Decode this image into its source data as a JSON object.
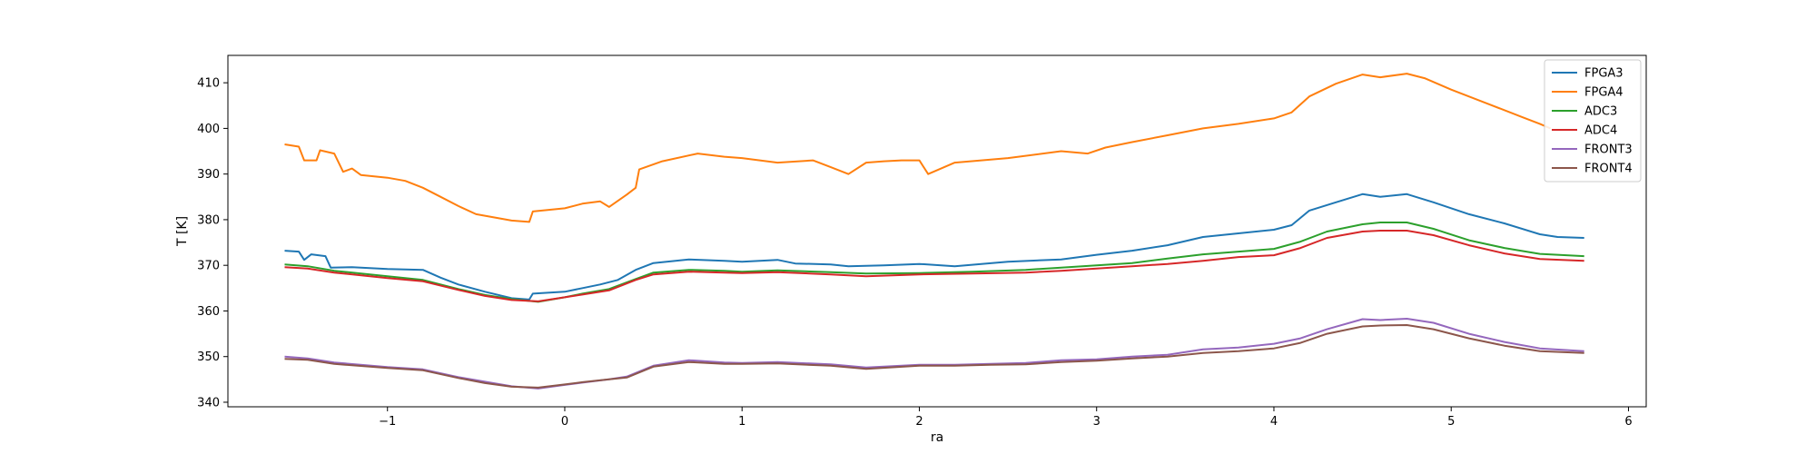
{
  "chart_data": {
    "type": "line",
    "title": "",
    "xlabel": "ra",
    "ylabel": "T [K]",
    "xlim": [
      -1.9,
      6.1
    ],
    "ylim": [
      339,
      416
    ],
    "xticks": [
      -1,
      0,
      1,
      2,
      3,
      4,
      5,
      6
    ],
    "xtick_labels": [
      "−1",
      "0",
      "1",
      "2",
      "3",
      "4",
      "5",
      "6"
    ],
    "yticks": [
      340,
      350,
      360,
      370,
      380,
      390,
      400,
      410
    ],
    "ytick_labels": [
      "340",
      "350",
      "360",
      "370",
      "380",
      "390",
      "400",
      "410"
    ],
    "grid": false,
    "legend_position": "top-right",
    "series": [
      {
        "name": "FPGA3",
        "color": "#1f77b4",
        "points": [
          [
            -1.58,
            373.2
          ],
          [
            -1.5,
            373.0
          ],
          [
            -1.47,
            371.2
          ],
          [
            -1.43,
            372.4
          ],
          [
            -1.35,
            372.0
          ],
          [
            -1.32,
            369.5
          ],
          [
            -1.2,
            369.6
          ],
          [
            -1.0,
            369.2
          ],
          [
            -0.8,
            369.0
          ],
          [
            -0.7,
            367.3
          ],
          [
            -0.6,
            365.8
          ],
          [
            -0.45,
            364.2
          ],
          [
            -0.3,
            362.8
          ],
          [
            -0.2,
            362.5
          ],
          [
            -0.18,
            363.8
          ],
          [
            0.0,
            364.2
          ],
          [
            0.1,
            365.0
          ],
          [
            0.2,
            365.8
          ],
          [
            0.3,
            366.8
          ],
          [
            0.4,
            369.0
          ],
          [
            0.5,
            370.5
          ],
          [
            0.7,
            371.3
          ],
          [
            0.9,
            371.0
          ],
          [
            1.0,
            370.8
          ],
          [
            1.2,
            371.2
          ],
          [
            1.3,
            370.4
          ],
          [
            1.5,
            370.2
          ],
          [
            1.6,
            369.8
          ],
          [
            1.8,
            370.0
          ],
          [
            2.0,
            370.3
          ],
          [
            2.2,
            369.8
          ],
          [
            2.5,
            370.8
          ],
          [
            2.8,
            371.3
          ],
          [
            3.0,
            372.3
          ],
          [
            3.2,
            373.2
          ],
          [
            3.4,
            374.4
          ],
          [
            3.6,
            376.2
          ],
          [
            3.8,
            377.0
          ],
          [
            4.0,
            377.8
          ],
          [
            4.1,
            378.8
          ],
          [
            4.2,
            382.0
          ],
          [
            4.35,
            383.8
          ],
          [
            4.5,
            385.6
          ],
          [
            4.6,
            385.0
          ],
          [
            4.75,
            385.6
          ],
          [
            4.9,
            383.8
          ],
          [
            5.1,
            381.2
          ],
          [
            5.3,
            379.2
          ],
          [
            5.5,
            376.8
          ],
          [
            5.6,
            376.2
          ],
          [
            5.75,
            376.0
          ]
        ]
      },
      {
        "name": "FPGA4",
        "color": "#ff7f0e",
        "points": [
          [
            -1.58,
            396.5
          ],
          [
            -1.5,
            396.0
          ],
          [
            -1.47,
            393.0
          ],
          [
            -1.4,
            393.0
          ],
          [
            -1.38,
            395.2
          ],
          [
            -1.3,
            394.5
          ],
          [
            -1.25,
            390.5
          ],
          [
            -1.2,
            391.2
          ],
          [
            -1.15,
            389.8
          ],
          [
            -1.0,
            389.2
          ],
          [
            -0.9,
            388.5
          ],
          [
            -0.8,
            387.0
          ],
          [
            -0.7,
            385.0
          ],
          [
            -0.6,
            383.0
          ],
          [
            -0.5,
            381.2
          ],
          [
            -0.4,
            380.5
          ],
          [
            -0.3,
            379.8
          ],
          [
            -0.2,
            379.5
          ],
          [
            -0.18,
            381.8
          ],
          [
            0.0,
            382.5
          ],
          [
            0.1,
            383.5
          ],
          [
            0.2,
            384.0
          ],
          [
            0.25,
            382.8
          ],
          [
            0.35,
            385.5
          ],
          [
            0.4,
            387.0
          ],
          [
            0.42,
            391.0
          ],
          [
            0.55,
            392.8
          ],
          [
            0.75,
            394.5
          ],
          [
            0.9,
            393.8
          ],
          [
            1.0,
            393.5
          ],
          [
            1.1,
            393.0
          ],
          [
            1.2,
            392.5
          ],
          [
            1.4,
            393.0
          ],
          [
            1.5,
            391.5
          ],
          [
            1.6,
            390.0
          ],
          [
            1.7,
            392.5
          ],
          [
            1.8,
            392.8
          ],
          [
            1.9,
            393.0
          ],
          [
            2.0,
            393.0
          ],
          [
            2.05,
            390.0
          ],
          [
            2.2,
            392.5
          ],
          [
            2.5,
            393.5
          ],
          [
            2.8,
            395.0
          ],
          [
            2.95,
            394.5
          ],
          [
            3.05,
            395.8
          ],
          [
            3.2,
            397.0
          ],
          [
            3.4,
            398.5
          ],
          [
            3.6,
            400.0
          ],
          [
            3.8,
            401.0
          ],
          [
            4.0,
            402.2
          ],
          [
            4.1,
            403.5
          ],
          [
            4.2,
            407.0
          ],
          [
            4.35,
            409.8
          ],
          [
            4.5,
            411.8
          ],
          [
            4.6,
            411.2
          ],
          [
            4.75,
            412.0
          ],
          [
            4.85,
            411.0
          ],
          [
            5.0,
            408.5
          ],
          [
            5.2,
            405.5
          ],
          [
            5.4,
            402.5
          ],
          [
            5.5,
            401.0
          ],
          [
            5.56,
            400.0
          ]
        ]
      },
      {
        "name": "ADC3",
        "color": "#2ca02c",
        "points": [
          [
            -1.58,
            370.2
          ],
          [
            -1.45,
            369.8
          ],
          [
            -1.3,
            368.8
          ],
          [
            -1.0,
            367.6
          ],
          [
            -0.8,
            366.8
          ],
          [
            -0.6,
            364.8
          ],
          [
            -0.45,
            363.5
          ],
          [
            -0.3,
            362.6
          ],
          [
            -0.15,
            362.0
          ],
          [
            0.0,
            363.0
          ],
          [
            0.1,
            363.8
          ],
          [
            0.25,
            364.8
          ],
          [
            0.4,
            367.0
          ],
          [
            0.5,
            368.4
          ],
          [
            0.7,
            369.0
          ],
          [
            0.9,
            368.8
          ],
          [
            1.0,
            368.6
          ],
          [
            1.2,
            368.9
          ],
          [
            1.5,
            368.5
          ],
          [
            1.7,
            368.2
          ],
          [
            2.0,
            368.3
          ],
          [
            2.3,
            368.6
          ],
          [
            2.6,
            369.0
          ],
          [
            2.8,
            369.5
          ],
          [
            3.0,
            370.0
          ],
          [
            3.2,
            370.5
          ],
          [
            3.4,
            371.5
          ],
          [
            3.6,
            372.4
          ],
          [
            3.8,
            373.0
          ],
          [
            4.0,
            373.6
          ],
          [
            4.15,
            375.2
          ],
          [
            4.3,
            377.4
          ],
          [
            4.5,
            379.0
          ],
          [
            4.6,
            379.4
          ],
          [
            4.75,
            379.4
          ],
          [
            4.9,
            378.0
          ],
          [
            5.1,
            375.5
          ],
          [
            5.3,
            373.8
          ],
          [
            5.5,
            372.5
          ],
          [
            5.75,
            372.0
          ]
        ]
      },
      {
        "name": "ADC4",
        "color": "#d62728",
        "points": [
          [
            -1.58,
            369.6
          ],
          [
            -1.45,
            369.3
          ],
          [
            -1.3,
            368.4
          ],
          [
            -1.0,
            367.2
          ],
          [
            -0.8,
            366.5
          ],
          [
            -0.6,
            364.6
          ],
          [
            -0.45,
            363.3
          ],
          [
            -0.3,
            362.4
          ],
          [
            -0.15,
            362.1
          ],
          [
            0.0,
            363.0
          ],
          [
            0.1,
            363.6
          ],
          [
            0.25,
            364.5
          ],
          [
            0.4,
            366.8
          ],
          [
            0.5,
            368.0
          ],
          [
            0.7,
            368.6
          ],
          [
            0.9,
            368.4
          ],
          [
            1.0,
            368.3
          ],
          [
            1.2,
            368.5
          ],
          [
            1.5,
            368.0
          ],
          [
            1.7,
            367.6
          ],
          [
            2.0,
            368.0
          ],
          [
            2.3,
            368.2
          ],
          [
            2.6,
            368.4
          ],
          [
            2.8,
            368.8
          ],
          [
            3.0,
            369.3
          ],
          [
            3.2,
            369.8
          ],
          [
            3.4,
            370.3
          ],
          [
            3.6,
            371.0
          ],
          [
            3.8,
            371.8
          ],
          [
            4.0,
            372.2
          ],
          [
            4.15,
            373.8
          ],
          [
            4.3,
            376.0
          ],
          [
            4.5,
            377.4
          ],
          [
            4.6,
            377.6
          ],
          [
            4.75,
            377.6
          ],
          [
            4.9,
            376.6
          ],
          [
            5.1,
            374.4
          ],
          [
            5.3,
            372.6
          ],
          [
            5.5,
            371.4
          ],
          [
            5.75,
            371.0
          ]
        ]
      },
      {
        "name": "FRONT3",
        "color": "#9467bd",
        "points": [
          [
            -1.58,
            350.0
          ],
          [
            -1.45,
            349.6
          ],
          [
            -1.3,
            348.7
          ],
          [
            -1.0,
            347.7
          ],
          [
            -0.8,
            347.2
          ],
          [
            -0.6,
            345.5
          ],
          [
            -0.45,
            344.5
          ],
          [
            -0.3,
            343.5
          ],
          [
            -0.15,
            343.0
          ],
          [
            0.0,
            343.8
          ],
          [
            0.1,
            344.3
          ],
          [
            0.25,
            345.0
          ],
          [
            0.35,
            345.6
          ],
          [
            0.5,
            348.0
          ],
          [
            0.7,
            349.2
          ],
          [
            0.9,
            348.7
          ],
          [
            1.0,
            348.6
          ],
          [
            1.2,
            348.8
          ],
          [
            1.5,
            348.3
          ],
          [
            1.7,
            347.6
          ],
          [
            2.0,
            348.2
          ],
          [
            2.2,
            348.2
          ],
          [
            2.4,
            348.4
          ],
          [
            2.6,
            348.6
          ],
          [
            2.8,
            349.2
          ],
          [
            3.0,
            349.4
          ],
          [
            3.2,
            350.0
          ],
          [
            3.4,
            350.4
          ],
          [
            3.6,
            351.6
          ],
          [
            3.8,
            352.0
          ],
          [
            4.0,
            352.8
          ],
          [
            4.15,
            354.0
          ],
          [
            4.3,
            356.0
          ],
          [
            4.5,
            358.2
          ],
          [
            4.6,
            358.0
          ],
          [
            4.75,
            358.3
          ],
          [
            4.9,
            357.4
          ],
          [
            5.1,
            355.0
          ],
          [
            5.3,
            353.2
          ],
          [
            5.5,
            351.8
          ],
          [
            5.75,
            351.2
          ]
        ]
      },
      {
        "name": "FRONT4",
        "color": "#8c564b",
        "points": [
          [
            -1.58,
            349.5
          ],
          [
            -1.45,
            349.3
          ],
          [
            -1.3,
            348.4
          ],
          [
            -1.0,
            347.5
          ],
          [
            -0.8,
            347.0
          ],
          [
            -0.6,
            345.3
          ],
          [
            -0.45,
            344.2
          ],
          [
            -0.3,
            343.4
          ],
          [
            -0.15,
            343.2
          ],
          [
            0.0,
            343.9
          ],
          [
            0.1,
            344.4
          ],
          [
            0.25,
            345.0
          ],
          [
            0.35,
            345.4
          ],
          [
            0.5,
            347.8
          ],
          [
            0.7,
            348.8
          ],
          [
            0.9,
            348.4
          ],
          [
            1.0,
            348.4
          ],
          [
            1.2,
            348.5
          ],
          [
            1.5,
            348.0
          ],
          [
            1.7,
            347.3
          ],
          [
            2.0,
            348.0
          ],
          [
            2.2,
            348.0
          ],
          [
            2.4,
            348.2
          ],
          [
            2.6,
            348.3
          ],
          [
            2.8,
            348.8
          ],
          [
            3.0,
            349.1
          ],
          [
            3.2,
            349.6
          ],
          [
            3.4,
            350.0
          ],
          [
            3.6,
            350.8
          ],
          [
            3.8,
            351.2
          ],
          [
            4.0,
            351.8
          ],
          [
            4.15,
            353.0
          ],
          [
            4.3,
            355.0
          ],
          [
            4.5,
            356.6
          ],
          [
            4.6,
            356.8
          ],
          [
            4.75,
            356.9
          ],
          [
            4.9,
            356.0
          ],
          [
            5.1,
            354.0
          ],
          [
            5.3,
            352.4
          ],
          [
            5.5,
            351.2
          ],
          [
            5.75,
            350.8
          ]
        ]
      }
    ]
  }
}
